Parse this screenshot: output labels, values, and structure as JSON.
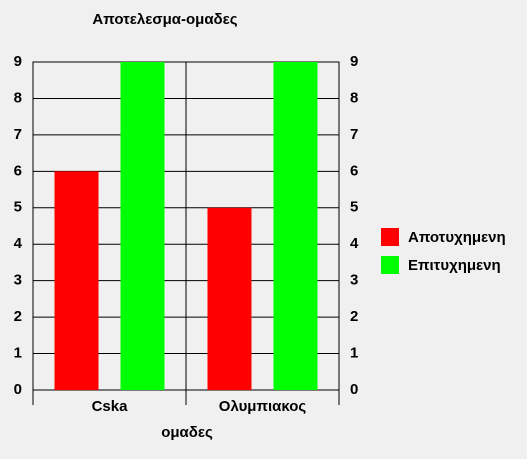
{
  "chart_data": {
    "type": "bar",
    "title": "Αποτελεσμα-ομαδες",
    "x_label": "ομαδες",
    "categories": [
      "Cska",
      "Ολυμπιακος"
    ],
    "series": [
      {
        "name": "Αποτυχημενη",
        "color": "#ff0000",
        "values": [
          6,
          5
        ]
      },
      {
        "name": "Επιτυχημενη",
        "color": "#00ff00",
        "values": [
          9,
          9
        ]
      }
    ],
    "ylim": [
      0,
      9
    ],
    "yticks": [
      0,
      1,
      2,
      3,
      4,
      5,
      6,
      7,
      8,
      9
    ],
    "grid": true,
    "legend": "right"
  }
}
